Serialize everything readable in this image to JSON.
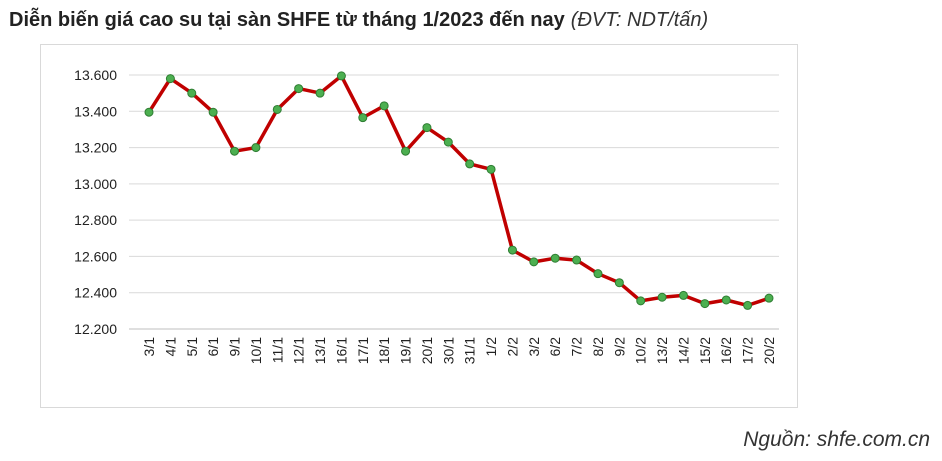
{
  "title": {
    "main": "Diễn biến giá cao su tại sàn SHFE từ tháng 1/2023 đến nay",
    "unit": "(ĐVT: NDT/tấn)"
  },
  "source": "Nguồn: shfe.com.cn",
  "chart_data": {
    "type": "line",
    "x": [
      "3/1",
      "4/1",
      "5/1",
      "6/1",
      "9/1",
      "10/1",
      "11/1",
      "12/1",
      "13/1",
      "16/1",
      "17/1",
      "18/1",
      "19/1",
      "20/1",
      "30/1",
      "31/1",
      "1/2",
      "2/2",
      "3/2",
      "6/2",
      "7/2",
      "8/2",
      "9/2",
      "10/2",
      "13/2",
      "14/2",
      "15/2",
      "16/2",
      "17/2",
      "20/2"
    ],
    "series": [
      {
        "values": [
          13395,
          13580,
          13500,
          13395,
          13180,
          13200,
          13410,
          13525,
          13500,
          13595,
          13365,
          13430,
          13180,
          13310,
          13230,
          13110,
          13080,
          12635,
          12570,
          12590,
          12580,
          12505,
          12455,
          12355,
          12375,
          12385,
          12340,
          12360,
          12330,
          12370
        ]
      }
    ],
    "y_ticks": [
      12200,
      12400,
      12600,
      12800,
      13000,
      13200,
      13400,
      13600
    ],
    "y_tick_labels": [
      "12.200",
      "12.400",
      "12.600",
      "12.800",
      "13.000",
      "13.200",
      "13.400",
      "13.600"
    ],
    "ylim": [
      12200,
      13700
    ],
    "grid": true,
    "legend": "none",
    "line_color": "#c00000",
    "marker_fill": "#4caf50",
    "marker_stroke": "#2e7d32"
  }
}
